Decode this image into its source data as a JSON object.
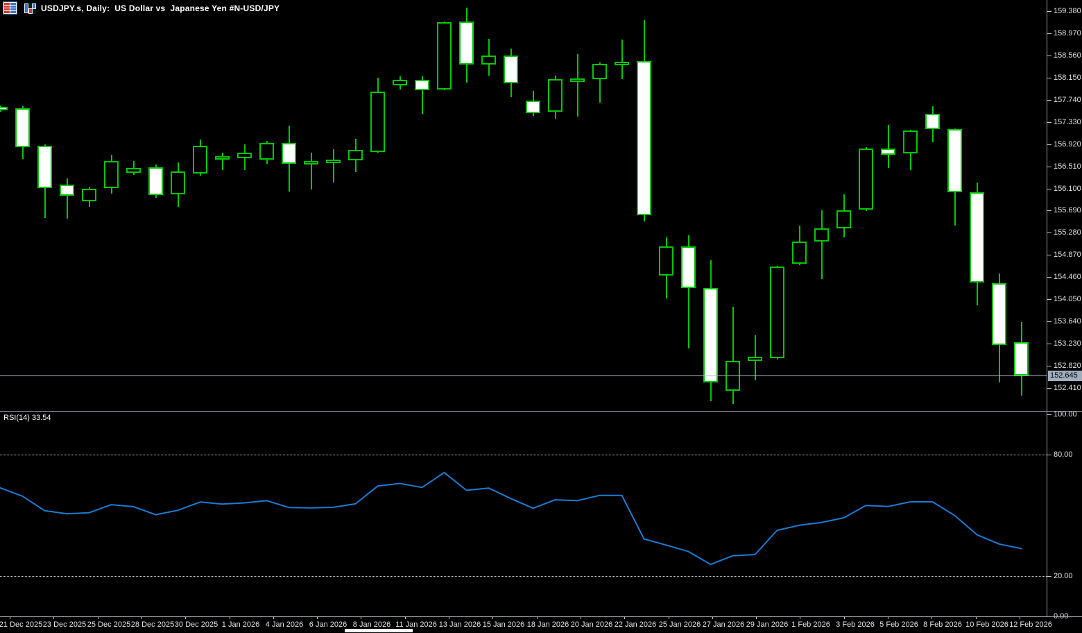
{
  "header": {
    "title": "USDJPY.s, Daily:  US Dollar vs  Japanese Yen #N-USD/JPY",
    "symbol": "USDJPY.s",
    "timeframe": "Daily",
    "description": "US Dollar vs Japanese Yen",
    "market_tag": "#N-USD/JPY",
    "icons": [
      "quotes-table-icon",
      "bar-chart-icon"
    ]
  },
  "colors": {
    "background": "#000000",
    "candle_outline": "#00C800",
    "bear_fill": "#FFFFFF",
    "bull_fill": "#000000",
    "rsi_line": "#1B7CD4",
    "current_price_line": "#A9B7C6",
    "price_tag_bg": "#9FAEBE",
    "axis_text": "#E4E4E4",
    "level_dotted": "#CFCFCF",
    "panel_border": "#9AA1A9"
  },
  "price_axis": {
    "current_price": "152.645",
    "ticks": [
      "159.380",
      "158.970",
      "158.560",
      "158.150",
      "157.740",
      "157.330",
      "156.920",
      "156.510",
      "156.100",
      "155.690",
      "155.280",
      "154.870",
      "154.460",
      "154.050",
      "153.640",
      "153.230",
      "152.820",
      "152.410"
    ]
  },
  "time_axis": {
    "labels": [
      "21 Dec 2025",
      "23 Dec 2025",
      "25 Dec 2025",
      "28 Dec 2025",
      "30 Dec 2025",
      "1 Jan 2026",
      "4 Jan 2026",
      "6 Jan 2026",
      "8 Jan 2026",
      "11 Jan 2026",
      "13 Jan 2026",
      "15 Jan 2026",
      "18 Jan 2026",
      "20 Jan 2026",
      "22 Jan 2026",
      "25 Jan 2026",
      "27 Jan 2026",
      "29 Jan 2026",
      "1 Feb 2026",
      "3 Feb 2026",
      "5 Feb 2026",
      "8 Feb 2026",
      "10 Feb 2026",
      "12 Feb 2026"
    ]
  },
  "rsi": {
    "label": "RSI(14) 33.54",
    "name": "RSI",
    "period": 14,
    "current_value": 33.54,
    "axis_labels": [
      "100.00",
      "80.00",
      "20.00",
      "0.00"
    ],
    "axis_values": [
      100,
      80,
      20,
      0
    ],
    "dotted_levels": [
      80,
      20
    ]
  },
  "chart_data": [
    {
      "type": "candlestick",
      "title": "USDJPY.s, Daily: US Dollar vs Japanese Yen",
      "ohlc_format": [
        "date",
        "open",
        "high",
        "low",
        "close"
      ],
      "y_range_visible": [
        152.2,
        159.5
      ],
      "current_price": 152.645,
      "candles": [
        [
          "19 Dec 2025",
          157.61,
          157.64,
          157.52,
          157.56
        ],
        [
          "21 Dec 2025",
          157.58,
          157.62,
          156.65,
          156.86
        ],
        [
          "22 Dec 2025",
          156.89,
          156.92,
          155.56,
          156.11
        ],
        [
          "23 Dec 2025",
          156.17,
          156.29,
          155.54,
          155.97
        ],
        [
          "24 Dec 2025",
          155.86,
          156.13,
          155.76,
          156.09
        ],
        [
          "25 Dec 2025",
          156.11,
          156.72,
          156.0,
          156.61
        ],
        [
          "26 Dec 2025",
          156.39,
          156.61,
          156.35,
          156.48
        ],
        [
          "28 Dec 2025",
          156.49,
          156.54,
          155.93,
          155.98
        ],
        [
          "29 Dec 2025",
          155.98,
          156.58,
          155.76,
          156.41
        ],
        [
          "30 Dec 2025",
          156.38,
          157.01,
          156.34,
          156.89
        ],
        [
          "31 Dec 2025",
          156.63,
          156.76,
          156.44,
          156.7
        ],
        [
          "1 Jan 2026",
          156.66,
          156.92,
          156.45,
          156.76
        ],
        [
          "2 Jan 2026",
          156.63,
          156.98,
          156.56,
          156.94
        ],
        [
          "4 Jan 2026",
          156.94,
          157.26,
          156.04,
          156.56
        ],
        [
          "5 Jan 2026",
          156.54,
          156.76,
          156.08,
          156.61
        ],
        [
          "6 Jan 2026",
          156.58,
          156.83,
          156.21,
          156.63
        ],
        [
          "7 Jan 2026",
          156.62,
          157.02,
          156.4,
          156.81
        ],
        [
          "8 Jan 2026",
          156.77,
          158.15,
          156.77,
          157.89
        ],
        [
          "9 Jan 2026",
          158.01,
          158.17,
          157.92,
          158.11
        ],
        [
          "11 Jan 2026",
          158.11,
          158.17,
          157.48,
          157.92
        ],
        [
          "12 Jan 2026",
          157.92,
          159.19,
          157.92,
          159.17
        ],
        [
          "13 Jan 2026",
          159.19,
          159.44,
          158.06,
          158.39
        ],
        [
          "14 Jan 2026",
          158.39,
          158.87,
          158.19,
          158.56
        ],
        [
          "15 Jan 2026",
          158.56,
          158.69,
          157.79,
          158.05
        ],
        [
          "16 Jan 2026",
          157.72,
          157.9,
          157.44,
          157.49
        ],
        [
          "18 Jan 2026",
          157.52,
          158.19,
          157.39,
          158.12
        ],
        [
          "19 Jan 2026",
          158.1,
          158.58,
          157.43,
          158.14
        ],
        [
          "20 Jan 2026",
          158.12,
          158.43,
          157.69,
          158.4
        ],
        [
          "21 Jan 2026",
          158.39,
          158.85,
          158.12,
          158.44
        ],
        [
          "22 Jan 2026",
          158.46,
          159.21,
          155.49,
          155.61
        ],
        [
          "23 Jan 2026",
          154.49,
          155.2,
          154.07,
          155.03
        ],
        [
          "25 Jan 2026",
          155.03,
          155.23,
          153.14,
          154.26
        ],
        [
          "26 Jan 2026",
          154.26,
          154.77,
          152.17,
          152.51
        ],
        [
          "27 Jan 2026",
          152.36,
          153.91,
          152.11,
          152.91
        ],
        [
          "28 Jan 2026",
          152.91,
          153.39,
          152.55,
          152.99
        ],
        [
          "29 Jan 2026",
          152.96,
          154.67,
          152.94,
          154.66
        ],
        [
          "30 Jan 2026",
          154.71,
          155.41,
          154.68,
          155.12
        ],
        [
          "1 Feb 2026",
          155.11,
          155.7,
          154.43,
          155.36
        ],
        [
          "2 Feb 2026",
          155.36,
          155.99,
          155.2,
          155.7
        ],
        [
          "3 Feb 2026",
          155.71,
          156.86,
          155.68,
          156.84
        ],
        [
          "4 Feb 2026",
          156.84,
          157.27,
          156.47,
          156.73
        ],
        [
          "5 Feb 2026",
          156.74,
          157.19,
          156.44,
          157.17
        ],
        [
          "6 Feb 2026",
          157.48,
          157.62,
          156.95,
          157.2
        ],
        [
          "8 Feb 2026",
          157.2,
          157.21,
          155.41,
          156.03
        ],
        [
          "9 Feb 2026",
          156.03,
          156.21,
          153.94,
          154.36
        ],
        [
          "10 Feb 2026",
          154.35,
          154.53,
          152.51,
          153.21
        ],
        [
          "12 Feb 2026",
          153.26,
          153.63,
          152.27,
          152.645
        ]
      ]
    },
    {
      "type": "line",
      "name": "RSI(14)",
      "y_range": [
        0,
        100
      ],
      "levels": [
        80,
        20
      ],
      "current_value": 33.54,
      "values": [
        63.6,
        59.5,
        52.3,
        50.8,
        51.3,
        55.3,
        54.3,
        50.3,
        52.5,
        56.6,
        55.6,
        56.2,
        57.3,
        53.9,
        53.7,
        54.0,
        55.7,
        64.5,
        65.8,
        63.8,
        71.2,
        62.4,
        63.5,
        58.3,
        53.5,
        57.7,
        57.3,
        59.9,
        59.9,
        38.3,
        35.3,
        32.1,
        25.7,
        30.0,
        30.6,
        42.6,
        45.1,
        46.5,
        48.8,
        54.9,
        54.4,
        56.7,
        56.7,
        49.9,
        40.4,
        35.8,
        33.54
      ]
    }
  ]
}
